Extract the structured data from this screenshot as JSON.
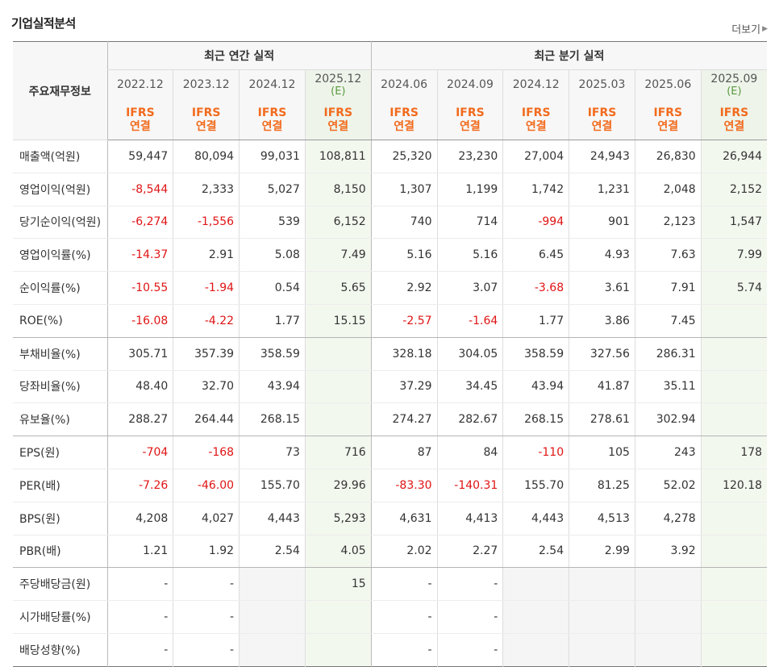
{
  "title": "기업실적분석",
  "more_label": "더보기",
  "colors": {
    "ifrs": "#f26b1d",
    "negative": "#e01414",
    "estimate_bg": "#f3f8ef"
  },
  "table": {
    "row_head_label": "주요재무정보",
    "groups": {
      "annual": "최근 연간 실적",
      "quarter": "최근 분기 실적"
    },
    "periods": [
      {
        "label": "2022.12",
        "est": ""
      },
      {
        "label": "2023.12",
        "est": ""
      },
      {
        "label": "2024.12",
        "est": ""
      },
      {
        "label": "2025.12",
        "est": "(E)"
      },
      {
        "label": "2024.06",
        "est": ""
      },
      {
        "label": "2024.09",
        "est": ""
      },
      {
        "label": "2024.12",
        "est": ""
      },
      {
        "label": "2025.03",
        "est": ""
      },
      {
        "label": "2025.06",
        "est": ""
      },
      {
        "label": "2025.09",
        "est": "(E)"
      }
    ],
    "ifrs_line1": "IFRS",
    "ifrs_line2": "연결",
    "rows": [
      {
        "label": "매출액(억원)",
        "values": [
          "59,447",
          "80,094",
          "99,031",
          "108,811",
          "25,320",
          "23,230",
          "27,004",
          "24,943",
          "26,830",
          "26,944"
        ]
      },
      {
        "label": "영업이익(억원)",
        "values": [
          "-8,544",
          "2,333",
          "5,027",
          "8,150",
          "1,307",
          "1,199",
          "1,742",
          "1,231",
          "2,048",
          "2,152"
        ]
      },
      {
        "label": "당기순이익(억원)",
        "values": [
          "-6,274",
          "-1,556",
          "539",
          "6,152",
          "740",
          "714",
          "-994",
          "901",
          "2,123",
          "1,547"
        ]
      },
      {
        "label": "영업이익률(%)",
        "values": [
          "-14.37",
          "2.91",
          "5.08",
          "7.49",
          "5.16",
          "5.16",
          "6.45",
          "4.93",
          "7.63",
          "7.99"
        ]
      },
      {
        "label": "순이익률(%)",
        "values": [
          "-10.55",
          "-1.94",
          "0.54",
          "5.65",
          "2.92",
          "3.07",
          "-3.68",
          "3.61",
          "7.91",
          "5.74"
        ]
      },
      {
        "label": "ROE(%)",
        "values": [
          "-16.08",
          "-4.22",
          "1.77",
          "15.15",
          "-2.57",
          "-1.64",
          "1.77",
          "3.86",
          "7.45",
          ""
        ]
      },
      {
        "label": "부채비율(%)",
        "values": [
          "305.71",
          "357.39",
          "358.59",
          "",
          "328.18",
          "304.05",
          "358.59",
          "327.56",
          "286.31",
          ""
        ]
      },
      {
        "label": "당좌비율(%)",
        "values": [
          "48.40",
          "32.70",
          "43.94",
          "",
          "37.29",
          "34.45",
          "43.94",
          "41.87",
          "35.11",
          ""
        ]
      },
      {
        "label": "유보율(%)",
        "values": [
          "288.27",
          "264.44",
          "268.15",
          "",
          "274.27",
          "282.67",
          "268.15",
          "278.61",
          "302.94",
          ""
        ]
      },
      {
        "label": "EPS(원)",
        "values": [
          "-704",
          "-168",
          "73",
          "716",
          "87",
          "84",
          "-110",
          "105",
          "243",
          "178"
        ]
      },
      {
        "label": "PER(배)",
        "values": [
          "-7.26",
          "-46.00",
          "155.70",
          "29.96",
          "-83.30",
          "-140.31",
          "155.70",
          "81.25",
          "52.02",
          "120.18"
        ]
      },
      {
        "label": "BPS(원)",
        "values": [
          "4,208",
          "4,027",
          "4,443",
          "5,293",
          "4,631",
          "4,413",
          "4,443",
          "4,513",
          "4,278",
          ""
        ]
      },
      {
        "label": "PBR(배)",
        "values": [
          "1.21",
          "1.92",
          "2.54",
          "4.05",
          "2.02",
          "2.27",
          "2.54",
          "2.99",
          "3.92",
          ""
        ]
      },
      {
        "label": "주당배당금(원)",
        "values": [
          "-",
          "-",
          "",
          "15",
          "-",
          "-",
          "",
          "",
          "",
          ""
        ]
      },
      {
        "label": "시가배당률(%)",
        "values": [
          "-",
          "-",
          "",
          "",
          "-",
          "-",
          "",
          "",
          "",
          ""
        ]
      },
      {
        "label": "배당성향(%)",
        "values": [
          "-",
          "-",
          "",
          "",
          "-",
          "-",
          "",
          "",
          "",
          ""
        ]
      }
    ]
  }
}
